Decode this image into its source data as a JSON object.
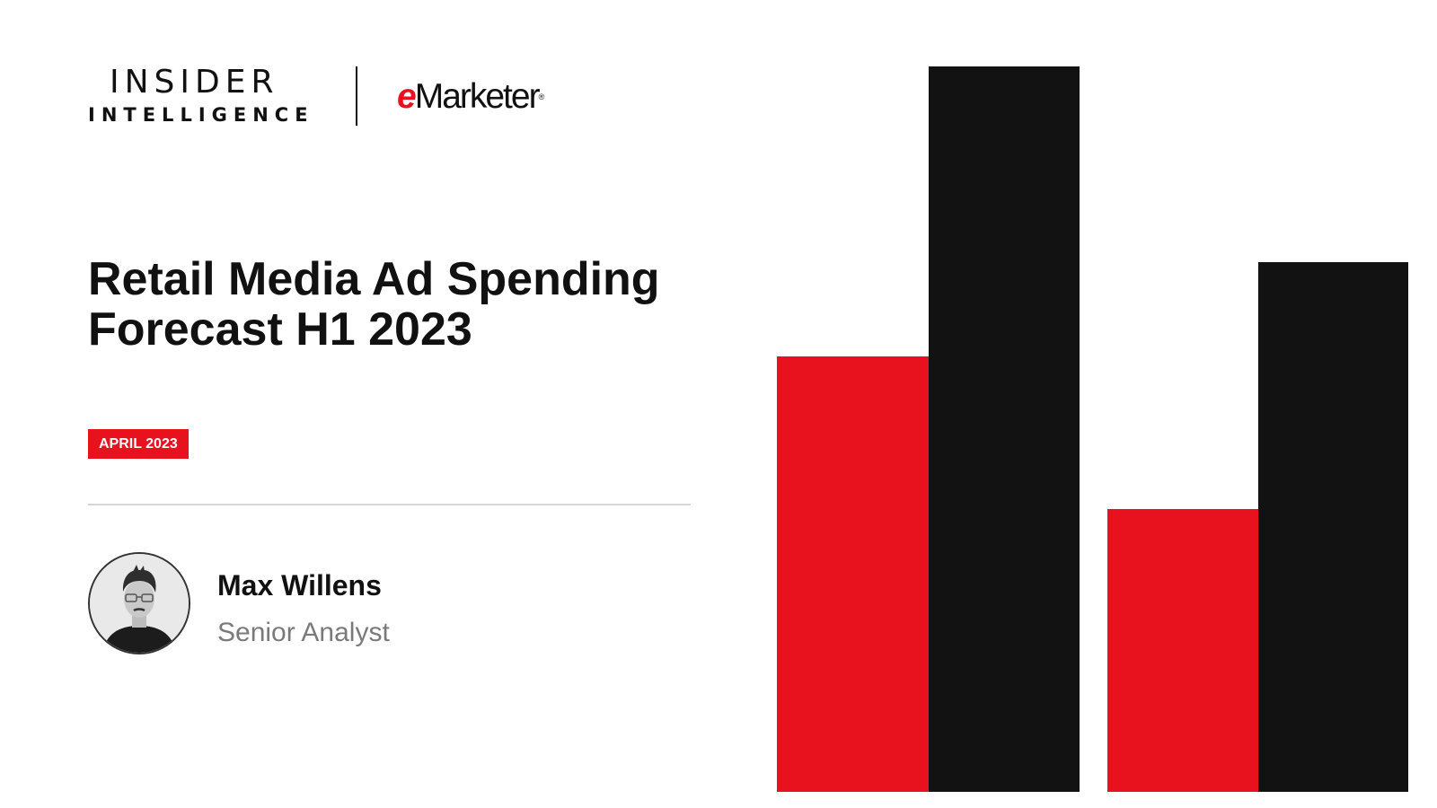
{
  "brand": {
    "insider_line1": "INSIDER",
    "insider_line2": "INTELLIGENCE",
    "emarketer_e": "e",
    "emarketer_rest": "Marketer",
    "emarketer_reg": "®"
  },
  "report": {
    "title_line1": "Retail Media Ad Spending",
    "title_line2": "Forecast H1 2023",
    "date": "APRIL 2023"
  },
  "author": {
    "name": "Max Willens",
    "role": "Senior Analyst"
  },
  "colors": {
    "accent": "#e8111e",
    "dark": "#121212",
    "rule": "#d6d6d6",
    "muted_text": "#7a7a7a"
  },
  "decoration": {
    "bars": [
      {
        "color": "red",
        "level": 0.6
      },
      {
        "color": "black",
        "level": 1.0
      },
      {
        "color": "red",
        "level": 0.39
      },
      {
        "color": "black",
        "level": 0.73
      }
    ]
  }
}
